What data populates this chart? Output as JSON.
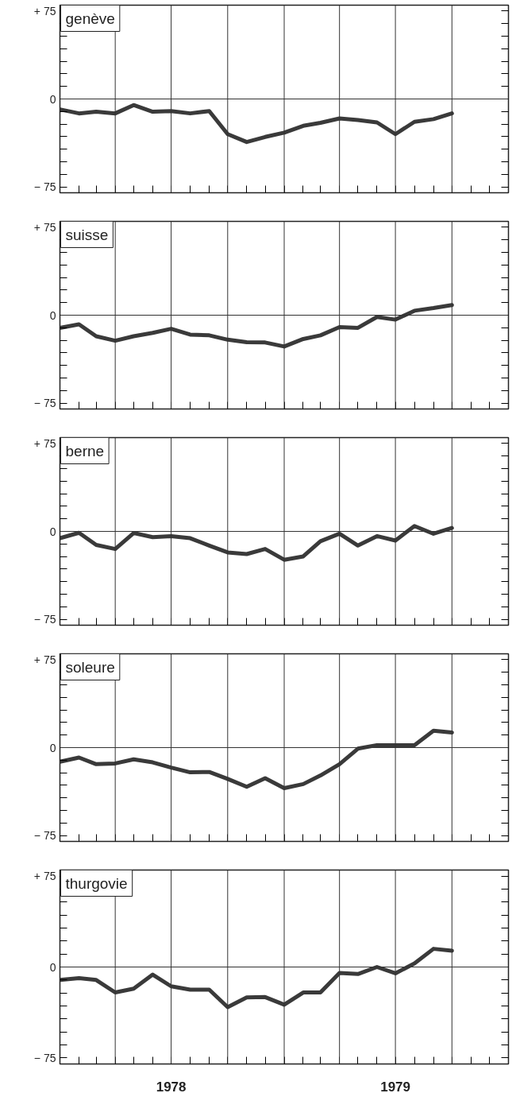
{
  "chart_data": [
    {
      "type": "line",
      "title": "genève",
      "x": [
        "1978-01",
        "1978-02",
        "1978-03",
        "1978-04",
        "1978-05",
        "1978-06",
        "1978-07",
        "1978-08",
        "1978-09",
        "1978-10",
        "1978-11",
        "1978-12",
        "1979-01",
        "1979-02",
        "1979-03",
        "1979-04",
        "1979-05",
        "1979-06",
        "1979-07",
        "1979-08",
        "1979-09",
        "1979-10"
      ],
      "values": [
        -8.9,
        -12.3,
        -10.9,
        -12.3,
        -5.2,
        -10.9,
        -10.3,
        -12.3,
        -10.3,
        -30,
        -36.7,
        -32.4,
        -28.7,
        -22.9,
        -20.3,
        -16.6,
        -18,
        -20,
        -30,
        -19.5,
        -17.2,
        -12.3
      ],
      "color": "#3a3a3a",
      "line_style": "solid",
      "tick_labels": "y",
      "xlim": [
        "1978-01",
        "1980-01"
      ],
      "ylim": [
        -80,
        80
      ],
      "xticks": [
        {
          "value": "1978-02",
          "label": null
        },
        {
          "value": "1978-03",
          "label": null
        },
        {
          "value": "1978-04",
          "label": null
        },
        {
          "value": "1978-05",
          "label": null
        },
        {
          "value": "1978-06",
          "label": null
        },
        {
          "value": "1978-07",
          "label": null
        },
        {
          "value": "1978-08",
          "label": null
        },
        {
          "value": "1978-09",
          "label": null
        },
        {
          "value": "1978-10",
          "label": null
        },
        {
          "value": "1978-11",
          "label": null
        },
        {
          "value": "1978-12",
          "label": null
        },
        {
          "value": "1979-01",
          "label": null
        },
        {
          "value": "1979-02",
          "label": null
        },
        {
          "value": "1979-03",
          "label": null
        },
        {
          "value": "1979-04",
          "label": null
        },
        {
          "value": "1979-05",
          "label": null
        },
        {
          "value": "1979-06",
          "label": null
        },
        {
          "value": "1979-07",
          "label": null
        },
        {
          "value": "1979-08",
          "label": null
        },
        {
          "value": "1979-09",
          "label": null
        },
        {
          "value": "1979-10",
          "label": null
        },
        {
          "value": "1979-11",
          "label": null
        },
        {
          "value": "1979-12",
          "label": null
        }
      ],
      "yticks": [
        {
          "value": -75,
          "label": "− 75"
        },
        {
          "value": -64.3,
          "label": null
        },
        {
          "value": -53.6,
          "label": null
        },
        {
          "value": -42.9,
          "label": null
        },
        {
          "value": -32.1,
          "label": null
        },
        {
          "value": -21.4,
          "label": null
        },
        {
          "value": -10.7,
          "label": null
        },
        0,
        {
          "value": 10.7,
          "label": null
        },
        {
          "value": 21.4,
          "label": null
        },
        {
          "value": 32.1,
          "label": null
        },
        {
          "value": 42.9,
          "label": null
        },
        {
          "value": 53.6,
          "label": null
        },
        {
          "value": 64.3,
          "label": null
        },
        {
          "value": 75,
          "label": "+ 75"
        }
      ],
      "ref_lines": [
        {
          "axis": "y",
          "value": 0,
          "label": null
        },
        {
          "axis": "x",
          "value": "1978-04",
          "label": null
        },
        {
          "axis": "x",
          "value": "1978-07",
          "label": null
        },
        {
          "axis": "x",
          "value": "1978-10",
          "label": null
        },
        {
          "axis": "x",
          "value": "1979-01",
          "label": null
        },
        {
          "axis": "x",
          "value": "1979-04",
          "label": null
        },
        {
          "axis": "x",
          "value": "1979-07",
          "label": null
        },
        {
          "axis": "x",
          "value": "1979-10",
          "label": null
        }
      ]
    },
    {
      "type": "line",
      "title": "suisse",
      "x": [
        "1978-01",
        "1978-02",
        "1978-03",
        "1978-04",
        "1978-05",
        "1978-06",
        "1978-07",
        "1978-08",
        "1978-09",
        "1978-10",
        "1978-11",
        "1978-12",
        "1979-01",
        "1979-02",
        "1979-03",
        "1979-04",
        "1979-05",
        "1979-06",
        "1979-07",
        "1979-08",
        "1979-09",
        "1979-10"
      ],
      "values": [
        -10.8,
        -7.8,
        -18,
        -21.8,
        -18,
        -15.1,
        -11.6,
        -16.6,
        -17.2,
        -20.9,
        -23,
        -23.3,
        -26.7,
        -20.3,
        -17.2,
        -10.2,
        -10.8,
        -1.5,
        -3.8,
        3.8,
        6.1,
        8.7
      ],
      "color": "#3a3a3a",
      "line_style": "solid",
      "tick_labels": "y",
      "xlim": [
        "1978-01",
        "1980-01"
      ],
      "ylim": [
        -80,
        80
      ],
      "xticks": [
        {
          "value": "1978-02",
          "label": null
        },
        {
          "value": "1978-03",
          "label": null
        },
        {
          "value": "1978-04",
          "label": null
        },
        {
          "value": "1978-05",
          "label": null
        },
        {
          "value": "1978-06",
          "label": null
        },
        {
          "value": "1978-07",
          "label": null
        },
        {
          "value": "1978-08",
          "label": null
        },
        {
          "value": "1978-09",
          "label": null
        },
        {
          "value": "1978-10",
          "label": null
        },
        {
          "value": "1978-11",
          "label": null
        },
        {
          "value": "1978-12",
          "label": null
        },
        {
          "value": "1979-01",
          "label": null
        },
        {
          "value": "1979-02",
          "label": null
        },
        {
          "value": "1979-03",
          "label": null
        },
        {
          "value": "1979-04",
          "label": null
        },
        {
          "value": "1979-05",
          "label": null
        },
        {
          "value": "1979-06",
          "label": null
        },
        {
          "value": "1979-07",
          "label": null
        },
        {
          "value": "1979-08",
          "label": null
        },
        {
          "value": "1979-09",
          "label": null
        },
        {
          "value": "1979-10",
          "label": null
        },
        {
          "value": "1979-11",
          "label": null
        },
        {
          "value": "1979-12",
          "label": null
        }
      ],
      "yticks": [
        {
          "value": -75,
          "label": "− 75"
        },
        {
          "value": -64.3,
          "label": null
        },
        {
          "value": -53.6,
          "label": null
        },
        {
          "value": -42.9,
          "label": null
        },
        {
          "value": -32.1,
          "label": null
        },
        {
          "value": -21.4,
          "label": null
        },
        {
          "value": -10.7,
          "label": null
        },
        0,
        {
          "value": 10.7,
          "label": null
        },
        {
          "value": 21.4,
          "label": null
        },
        {
          "value": 32.1,
          "label": null
        },
        {
          "value": 42.9,
          "label": null
        },
        {
          "value": 53.6,
          "label": null
        },
        {
          "value": 64.3,
          "label": null
        },
        {
          "value": 75,
          "label": "+ 75"
        }
      ],
      "ref_lines": [
        {
          "axis": "y",
          "value": 0,
          "label": null
        },
        {
          "axis": "x",
          "value": "1978-04",
          "label": null
        },
        {
          "axis": "x",
          "value": "1978-07",
          "label": null
        },
        {
          "axis": "x",
          "value": "1978-10",
          "label": null
        },
        {
          "axis": "x",
          "value": "1979-01",
          "label": null
        },
        {
          "axis": "x",
          "value": "1979-04",
          "label": null
        },
        {
          "axis": "x",
          "value": "1979-07",
          "label": null
        },
        {
          "axis": "x",
          "value": "1979-10",
          "label": null
        }
      ]
    },
    {
      "type": "line",
      "title": "berne",
      "x": [
        "1978-01",
        "1978-02",
        "1978-03",
        "1978-04",
        "1978-05",
        "1978-06",
        "1978-07",
        "1978-08",
        "1978-09",
        "1978-10",
        "1978-11",
        "1978-12",
        "1979-01",
        "1979-02",
        "1979-03",
        "1979-04",
        "1979-05",
        "1979-06",
        "1979-07",
        "1979-08",
        "1979-09",
        "1979-10"
      ],
      "values": [
        -5.8,
        -1.2,
        -11.5,
        -15,
        -1.4,
        -4.9,
        -4,
        -5.8,
        -12.1,
        -17.9,
        -19.3,
        -15,
        -24.2,
        -21.3,
        -8.4,
        -2,
        -12.1,
        -4,
        -7.8,
        4.6,
        -2,
        2.9
      ],
      "color": "#3a3a3a",
      "line_style": "solid",
      "tick_labels": "y",
      "xlim": [
        "1978-01",
        "1980-01"
      ],
      "ylim": [
        -80,
        80
      ],
      "xticks": [
        {
          "value": "1978-02",
          "label": null
        },
        {
          "value": "1978-03",
          "label": null
        },
        {
          "value": "1978-04",
          "label": null
        },
        {
          "value": "1978-05",
          "label": null
        },
        {
          "value": "1978-06",
          "label": null
        },
        {
          "value": "1978-07",
          "label": null
        },
        {
          "value": "1978-08",
          "label": null
        },
        {
          "value": "1978-09",
          "label": null
        },
        {
          "value": "1978-10",
          "label": null
        },
        {
          "value": "1978-11",
          "label": null
        },
        {
          "value": "1978-12",
          "label": null
        },
        {
          "value": "1979-01",
          "label": null
        },
        {
          "value": "1979-02",
          "label": null
        },
        {
          "value": "1979-03",
          "label": null
        },
        {
          "value": "1979-04",
          "label": null
        },
        {
          "value": "1979-05",
          "label": null
        },
        {
          "value": "1979-06",
          "label": null
        },
        {
          "value": "1979-07",
          "label": null
        },
        {
          "value": "1979-08",
          "label": null
        },
        {
          "value": "1979-09",
          "label": null
        },
        {
          "value": "1979-10",
          "label": null
        },
        {
          "value": "1979-11",
          "label": null
        },
        {
          "value": "1979-12",
          "label": null
        }
      ],
      "yticks": [
        {
          "value": -75,
          "label": "− 75"
        },
        {
          "value": -64.3,
          "label": null
        },
        {
          "value": -53.6,
          "label": null
        },
        {
          "value": -42.9,
          "label": null
        },
        {
          "value": -32.1,
          "label": null
        },
        {
          "value": -21.4,
          "label": null
        },
        {
          "value": -10.7,
          "label": null
        },
        0,
        {
          "value": 10.7,
          "label": null
        },
        {
          "value": 21.4,
          "label": null
        },
        {
          "value": 32.1,
          "label": null
        },
        {
          "value": 42.9,
          "label": null
        },
        {
          "value": 53.6,
          "label": null
        },
        {
          "value": 64.3,
          "label": null
        },
        {
          "value": 75,
          "label": "+ 75"
        }
      ],
      "ref_lines": [
        {
          "axis": "y",
          "value": 0,
          "label": null
        },
        {
          "axis": "x",
          "value": "1978-04",
          "label": null
        },
        {
          "axis": "x",
          "value": "1978-07",
          "label": null
        },
        {
          "axis": "x",
          "value": "1978-10",
          "label": null
        },
        {
          "axis": "x",
          "value": "1979-01",
          "label": null
        },
        {
          "axis": "x",
          "value": "1979-04",
          "label": null
        },
        {
          "axis": "x",
          "value": "1979-07",
          "label": null
        },
        {
          "axis": "x",
          "value": "1979-10",
          "label": null
        }
      ]
    },
    {
      "type": "line",
      "title": "soleure",
      "x": [
        "1978-01",
        "1978-02",
        "1978-03",
        "1978-04",
        "1978-05",
        "1978-06",
        "1978-07",
        "1978-08",
        "1978-09",
        "1978-10",
        "1978-11",
        "1978-12",
        "1979-01",
        "1979-02",
        "1979-03",
        "1979-04",
        "1979-05",
        "1979-06",
        "1979-07",
        "1979-08",
        "1979-09",
        "1979-10"
      ],
      "values": [
        -12,
        -8.5,
        -14.1,
        -13.5,
        -10,
        -12.6,
        -17,
        -21.1,
        -20.8,
        -26.7,
        -33.4,
        -26.1,
        -34.6,
        -31.1,
        -23.8,
        -14.1,
        -0.9,
        2.1,
        2.1,
        2.1,
        14.4,
        12.9
      ],
      "color": "#3a3a3a",
      "line_style": "solid",
      "tick_labels": "y",
      "xlim": [
        "1978-01",
        "1980-01"
      ],
      "ylim": [
        -80,
        80
      ],
      "xticks": [
        {
          "value": "1978-02",
          "label": null
        },
        {
          "value": "1978-03",
          "label": null
        },
        {
          "value": "1978-04",
          "label": null
        },
        {
          "value": "1978-05",
          "label": null
        },
        {
          "value": "1978-06",
          "label": null
        },
        {
          "value": "1978-07",
          "label": null
        },
        {
          "value": "1978-08",
          "label": null
        },
        {
          "value": "1978-09",
          "label": null
        },
        {
          "value": "1978-10",
          "label": null
        },
        {
          "value": "1978-11",
          "label": null
        },
        {
          "value": "1978-12",
          "label": null
        },
        {
          "value": "1979-01",
          "label": null
        },
        {
          "value": "1979-02",
          "label": null
        },
        {
          "value": "1979-03",
          "label": null
        },
        {
          "value": "1979-04",
          "label": null
        },
        {
          "value": "1979-05",
          "label": null
        },
        {
          "value": "1979-06",
          "label": null
        },
        {
          "value": "1979-07",
          "label": null
        },
        {
          "value": "1979-08",
          "label": null
        },
        {
          "value": "1979-09",
          "label": null
        },
        {
          "value": "1979-10",
          "label": null
        },
        {
          "value": "1979-11",
          "label": null
        },
        {
          "value": "1979-12",
          "label": null
        }
      ],
      "yticks": [
        {
          "value": -75,
          "label": "− 75"
        },
        {
          "value": -64.3,
          "label": null
        },
        {
          "value": -53.6,
          "label": null
        },
        {
          "value": -42.9,
          "label": null
        },
        {
          "value": -32.1,
          "label": null
        },
        {
          "value": -21.4,
          "label": null
        },
        {
          "value": -10.7,
          "label": null
        },
        0,
        {
          "value": 10.7,
          "label": null
        },
        {
          "value": 21.4,
          "label": null
        },
        {
          "value": 32.1,
          "label": null
        },
        {
          "value": 42.9,
          "label": null
        },
        {
          "value": 53.6,
          "label": null
        },
        {
          "value": 64.3,
          "label": null
        },
        {
          "value": 75,
          "label": "+ 75"
        }
      ],
      "ref_lines": [
        {
          "axis": "y",
          "value": 0,
          "label": null
        },
        {
          "axis": "x",
          "value": "1978-04",
          "label": null
        },
        {
          "axis": "x",
          "value": "1978-07",
          "label": null
        },
        {
          "axis": "x",
          "value": "1978-10",
          "label": null
        },
        {
          "axis": "x",
          "value": "1979-01",
          "label": null
        },
        {
          "axis": "x",
          "value": "1979-04",
          "label": null
        },
        {
          "axis": "x",
          "value": "1979-07",
          "label": null
        },
        {
          "axis": "x",
          "value": "1979-10",
          "label": null
        }
      ]
    },
    {
      "type": "line",
      "title": "thurgovie",
      "x": [
        "1978-01",
        "1978-02",
        "1978-03",
        "1978-04",
        "1978-05",
        "1978-06",
        "1978-07",
        "1978-08",
        "1978-09",
        "1978-10",
        "1978-11",
        "1978-12",
        "1979-01",
        "1979-02",
        "1979-03",
        "1979-04",
        "1979-05",
        "1979-06",
        "1979-07",
        "1979-08",
        "1979-09",
        "1979-10"
      ],
      "values": [
        -10.7,
        -9.2,
        -10.7,
        -21,
        -17.9,
        -6.3,
        -15.9,
        -18.7,
        -18.7,
        -33.1,
        -25.1,
        -24.8,
        -31.1,
        -21,
        -21,
        -4.9,
        -5.8,
        0,
        -5.2,
        2.9,
        15,
        13.5
      ],
      "color": "#3a3a3a",
      "line_style": "solid",
      "xlim": [
        "1978-01",
        "1980-01"
      ],
      "ylim": [
        -80,
        80
      ],
      "xticks": [
        {
          "value": "1978-02",
          "label": null
        },
        {
          "value": "1978-03",
          "label": null
        },
        {
          "value": "1978-04",
          "label": null
        },
        {
          "value": "1978-05",
          "label": null
        },
        {
          "value": "1978-06",
          "label": null
        },
        {
          "value": "1978-07",
          "label": "1978"
        },
        {
          "value": "1978-08",
          "label": null
        },
        {
          "value": "1978-09",
          "label": null
        },
        {
          "value": "1978-10",
          "label": null
        },
        {
          "value": "1978-11",
          "label": null
        },
        {
          "value": "1978-12",
          "label": null
        },
        {
          "value": "1979-01",
          "label": null
        },
        {
          "value": "1979-02",
          "label": null
        },
        {
          "value": "1979-03",
          "label": null
        },
        {
          "value": "1979-04",
          "label": null
        },
        {
          "value": "1979-05",
          "label": null
        },
        {
          "value": "1979-06",
          "label": null
        },
        {
          "value": "1979-07",
          "label": "1979"
        },
        {
          "value": "1979-08",
          "label": null
        },
        {
          "value": "1979-09",
          "label": null
        },
        {
          "value": "1979-10",
          "label": null
        },
        {
          "value": "1979-11",
          "label": null
        },
        {
          "value": "1979-12",
          "label": null
        }
      ],
      "yticks": [
        {
          "value": -75,
          "label": "− 75"
        },
        {
          "value": -64.3,
          "label": null
        },
        {
          "value": -53.6,
          "label": null
        },
        {
          "value": -42.9,
          "label": null
        },
        {
          "value": -32.1,
          "label": null
        },
        {
          "value": -21.4,
          "label": null
        },
        {
          "value": -10.7,
          "label": null
        },
        0,
        {
          "value": 10.7,
          "label": null
        },
        {
          "value": 21.4,
          "label": null
        },
        {
          "value": 32.1,
          "label": null
        },
        {
          "value": 42.9,
          "label": null
        },
        {
          "value": 53.6,
          "label": null
        },
        {
          "value": 64.3,
          "label": null
        },
        {
          "value": 75,
          "label": "+ 75"
        }
      ],
      "ref_lines": [
        {
          "axis": "y",
          "value": 0,
          "label": null
        },
        {
          "axis": "x",
          "value": "1978-04",
          "label": null
        },
        {
          "axis": "x",
          "value": "1978-07",
          "label": null
        },
        {
          "axis": "x",
          "value": "1978-10",
          "label": null
        },
        {
          "axis": "x",
          "value": "1979-01",
          "label": null
        },
        {
          "axis": "x",
          "value": "1979-04",
          "label": null
        },
        {
          "axis": "x",
          "value": "1979-07",
          "label": null
        },
        {
          "axis": "x",
          "value": "1979-10",
          "label": null
        }
      ]
    }
  ]
}
